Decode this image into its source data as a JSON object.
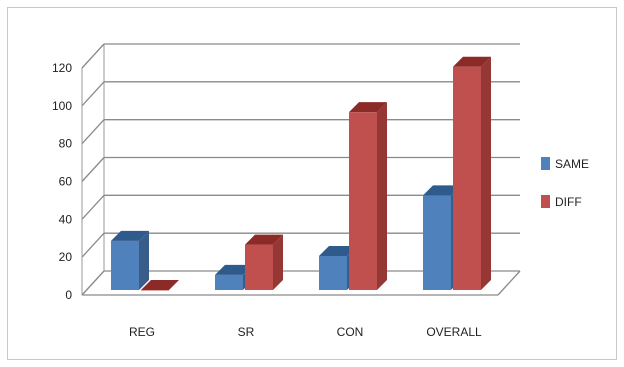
{
  "chart_data": {
    "type": "bar",
    "categories": [
      "REG",
      "SR",
      "CON",
      "OVERALL"
    ],
    "series": [
      {
        "name": "SAME",
        "values": [
          26,
          8,
          18,
          50
        ],
        "color": "#4f81bd",
        "top": "#2f5a8c",
        "side": "#385d8a"
      },
      {
        "name": "DIFF",
        "values": [
          0,
          24,
          94,
          118
        ],
        "color": "#c0504d",
        "top": "#8c2a28",
        "side": "#953735"
      }
    ],
    "yticks": [
      "0",
      "20",
      "40",
      "60",
      "80",
      "100",
      "120"
    ],
    "ylim": [
      0,
      120
    ],
    "grid": true,
    "legend": "right",
    "three_d": true
  }
}
